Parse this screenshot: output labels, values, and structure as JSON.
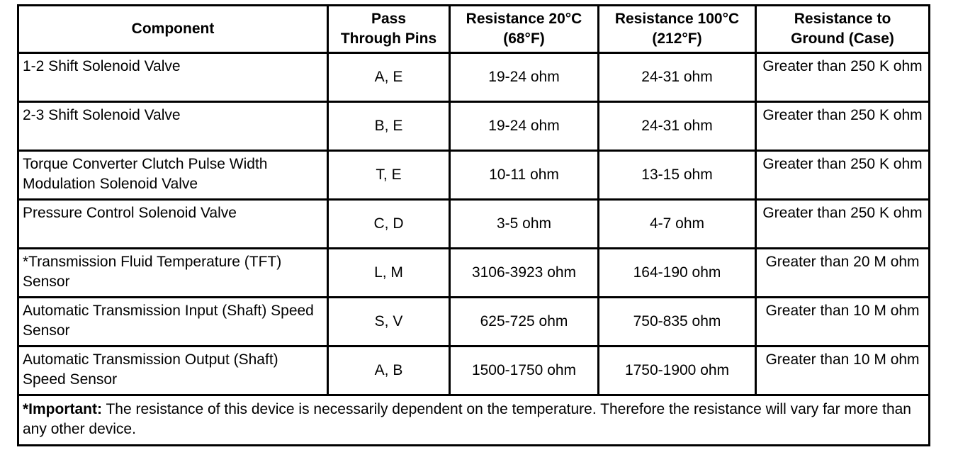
{
  "headers": {
    "component": "Component",
    "pins": [
      "Pass",
      "Through Pins"
    ],
    "r20": [
      "Resistance 20°C",
      "(68°F)"
    ],
    "r100": [
      "Resistance 100°C",
      "(212°F)"
    ],
    "ground": [
      "Resistance to",
      "Ground (Case)"
    ]
  },
  "rows": [
    {
      "component": "1-2 Shift Solenoid Valve",
      "pins": "A, E",
      "r20": "19-24 ohm",
      "r100": "24-31 ohm",
      "ground": "Greater than 250 K ohm"
    },
    {
      "component": "2-3 Shift Solenoid Valve",
      "pins": "B, E",
      "r20": "19-24 ohm",
      "r100": "24-31 ohm",
      "ground": "Greater than 250 K ohm"
    },
    {
      "component": "Torque Converter Clutch Pulse Width Modulation Solenoid Valve",
      "pins": "T, E",
      "r20": "10-11 ohm",
      "r100": "13-15 ohm",
      "ground": "Greater than 250 K ohm"
    },
    {
      "component": "Pressure Control Solenoid Valve",
      "pins": "C, D",
      "r20": "3-5 ohm",
      "r100": "4-7 ohm",
      "ground": "Greater than 250 K ohm"
    },
    {
      "component": "*Transmission Fluid Temperature (TFT) Sensor",
      "pins": "L, M",
      "r20": "3106-3923 ohm",
      "r100": "164-190 ohm",
      "ground": "Greater than 20 M ohm"
    },
    {
      "component": "Automatic Transmission Input (Shaft) Speed Sensor",
      "pins": "S, V",
      "r20": "625-725 ohm",
      "r100": "750-835 ohm",
      "ground": "Greater than 10 M ohm"
    },
    {
      "component": "Automatic Transmission Output (Shaft) Speed Sensor",
      "pins": "A, B",
      "r20": "1500-1750 ohm",
      "r100": "1750-1900 ohm",
      "ground": "Greater than 10 M ohm"
    }
  ],
  "note": {
    "label": "*Important:",
    "text": " The resistance of this device is necessarily dependent on the temperature. Therefore the resistance will vary far more than any other device."
  }
}
